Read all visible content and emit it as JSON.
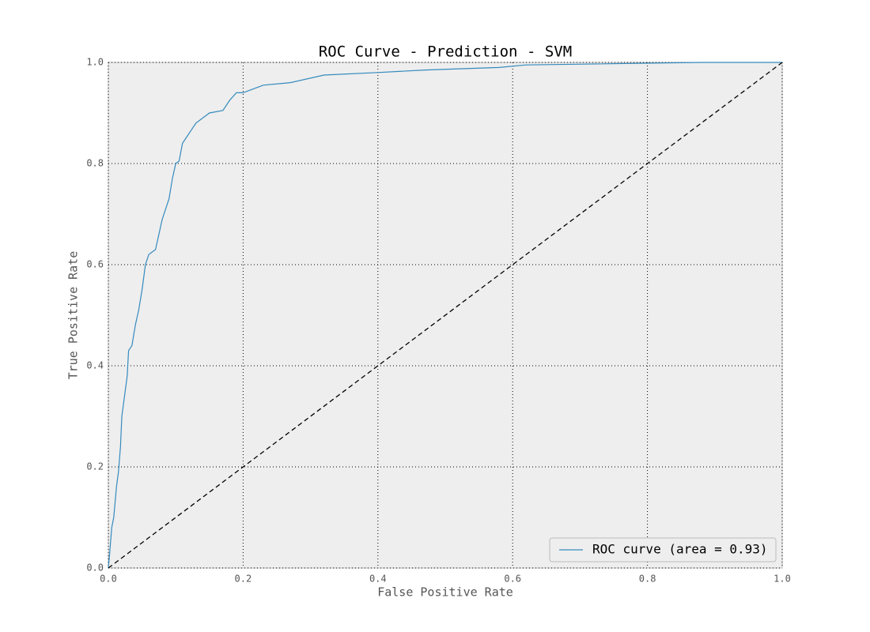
{
  "chart_data": {
    "type": "line",
    "title": "ROC Curve - Prediction - SVM",
    "x_label": "False Positive Rate",
    "y_label": "True Positive Rate",
    "xlim": [
      0,
      1
    ],
    "ylim": [
      0,
      1
    ],
    "xticks": [
      {
        "value": 0,
        "label": "0.0"
      },
      0.2,
      0.4,
      0.6,
      0.8,
      {
        "value": 1,
        "label": "1.0"
      }
    ],
    "yticks": [
      {
        "value": 0,
        "label": "0.0"
      },
      0.2,
      0.4,
      0.6,
      0.8,
      {
        "value": 1,
        "label": "1.0"
      }
    ],
    "grid": true,
    "legend": "lower right",
    "series": [
      {
        "name": "ROC curve (area = 0.93)",
        "color": "#348abd",
        "dashed": false,
        "x": [
          0,
          0.002,
          0.005,
          0.008,
          0.012,
          0.015,
          0.018,
          0.02,
          0.022,
          0.025,
          0.028,
          0.03,
          0.035,
          0.04,
          0.045,
          0.05,
          0.055,
          0.06,
          0.065,
          0.07,
          0.075,
          0.08,
          0.085,
          0.09,
          0.095,
          0.1,
          0.105,
          0.11,
          0.115,
          0.12,
          0.13,
          0.14,
          0.15,
          0.17,
          0.18,
          0.19,
          0.2,
          0.21,
          0.23,
          0.27,
          0.32,
          0.4,
          0.47,
          0.58,
          0.62,
          0.88,
          1
        ],
        "values": [
          0,
          0.03,
          0.08,
          0.1,
          0.16,
          0.19,
          0.24,
          0.3,
          0.32,
          0.35,
          0.38,
          0.43,
          0.44,
          0.48,
          0.51,
          0.55,
          0.6,
          0.62,
          0.625,
          0.63,
          0.66,
          0.69,
          0.71,
          0.73,
          0.77,
          0.8,
          0.805,
          0.84,
          0.85,
          0.86,
          0.88,
          0.89,
          0.9,
          0.905,
          0.925,
          0.94,
          0.94,
          0.945,
          0.955,
          0.96,
          0.975,
          0.98,
          0.985,
          0.99,
          0.995,
          1,
          1
        ]
      },
      {
        "color": "#000000",
        "dashed": true,
        "x": [
          0,
          1
        ],
        "values": [
          0,
          1
        ]
      }
    ]
  }
}
